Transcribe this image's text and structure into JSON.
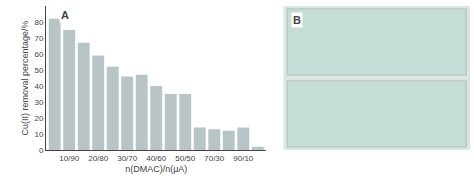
{
  "chart_data": {
    "type": "bar",
    "categories": [
      null,
      "10/90",
      null,
      "20/80",
      null,
      "30/70",
      null,
      "40/60",
      null,
      "50/50",
      null,
      "70/30",
      null,
      "90/10",
      null
    ],
    "values": [
      82,
      75,
      67,
      59,
      52,
      46,
      47,
      40,
      35,
      35,
      14,
      13,
      12,
      14,
      2
    ],
    "color": "#b8c4c6",
    "xlabel": "n(DMAC)/n(μA)",
    "ylabel": "Cu(II) removal percentage/%",
    "ylim": [
      0,
      90
    ],
    "yticks": [
      0,
      10,
      20,
      30,
      40,
      50,
      60,
      70,
      80
    ],
    "grid": false,
    "annotations": [
      "A",
      "B"
    ]
  }
}
